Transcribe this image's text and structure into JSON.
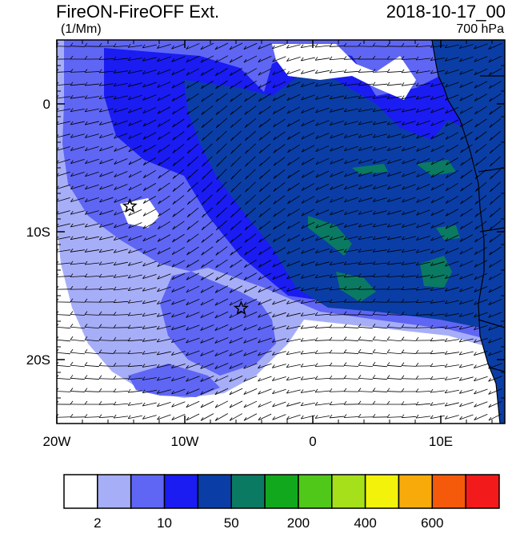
{
  "header": {
    "title": "FireON-FireOFF Ext.",
    "units": "(1/Mm)",
    "datetime": "2018-10-17_00",
    "level": "700 hPa"
  },
  "map": {
    "lon_range": [
      -20,
      15
    ],
    "lat_range": [
      -25,
      5
    ],
    "lat_ticks": [
      {
        "value": 0,
        "label": "0"
      },
      {
        "value": -10,
        "label": "10S"
      },
      {
        "value": -20,
        "label": "20S"
      }
    ],
    "lon_ticks": [
      {
        "value": -20,
        "label": "20W"
      },
      {
        "value": -10,
        "label": "10W"
      },
      {
        "value": 0,
        "label": "0"
      },
      {
        "value": 10,
        "label": "10E"
      }
    ],
    "markers": [
      {
        "type": "star",
        "lon": -14.3,
        "lat": -8.0
      },
      {
        "type": "star",
        "lon": -5.6,
        "lat": -16.0
      }
    ]
  },
  "colorbar": {
    "colors": [
      "#ffffff",
      "#a7aef8",
      "#5f66f4",
      "#1a1cf2",
      "#0a3ea6",
      "#0a7a62",
      "#12a81e",
      "#50c81a",
      "#a6e01a",
      "#f2f20a",
      "#f8aa0a",
      "#f45a0a",
      "#f21a1a"
    ],
    "labels": [
      {
        "after_box": 1,
        "text": "2"
      },
      {
        "after_box": 3,
        "text": "10"
      },
      {
        "after_box": 5,
        "text": "50"
      },
      {
        "after_box": 7,
        "text": "200"
      },
      {
        "after_box": 9,
        "text": "400"
      },
      {
        "after_box": 11,
        "text": "600"
      }
    ]
  },
  "colors": {
    "ocean_light": "#ffffff",
    "level1": "#a7aef8",
    "level2": "#5f66f4",
    "level3": "#1a1cf2",
    "level4": "#0a3ea6",
    "level5": "#0a7a62",
    "level6": "#12a81e"
  }
}
